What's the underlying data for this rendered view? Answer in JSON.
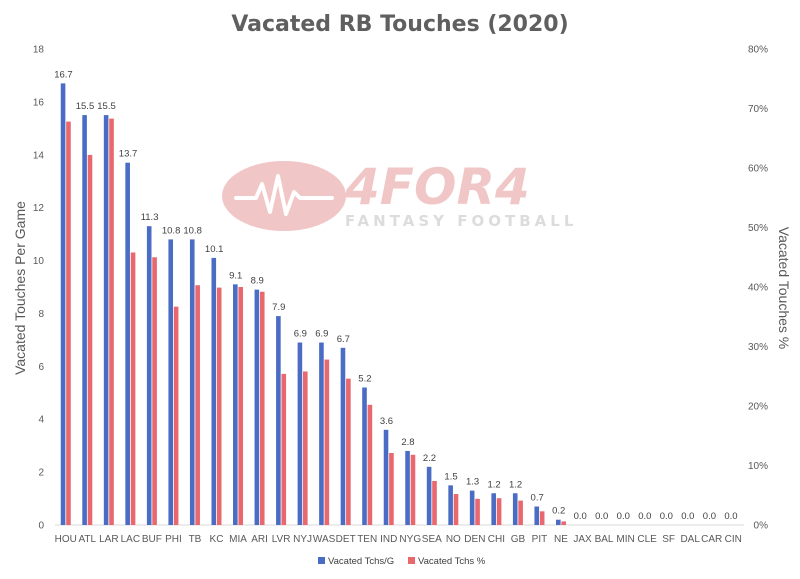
{
  "chart_data": {
    "type": "bar",
    "title": "Vacated RB Touches (2020)",
    "ylabel": "Vacated Touches Per Game",
    "y2label": "Vacated Touches %",
    "ylim": [
      0,
      18
    ],
    "yticks": [
      "0",
      "2",
      "4",
      "6",
      "8",
      "10",
      "12",
      "14",
      "16",
      "18"
    ],
    "y2lim": [
      0,
      80
    ],
    "y2ticks": [
      "0%",
      "10%",
      "20%",
      "30%",
      "40%",
      "50%",
      "60%",
      "70%",
      "80%"
    ],
    "categories": [
      "HOU",
      "ATL",
      "LAR",
      "LAC",
      "BUF",
      "PHI",
      "TB",
      "KC",
      "MIA",
      "ARI",
      "LVR",
      "NYJ",
      "WAS",
      "DET",
      "TEN",
      "IND",
      "NYG",
      "SEA",
      "NO",
      "DEN",
      "CHI",
      "GB",
      "PIT",
      "NE",
      "JAX",
      "BAL",
      "MIN",
      "CLE",
      "SF",
      "DAL",
      "CAR",
      "CIN"
    ],
    "series": [
      {
        "name": "Vacated Tchs/G",
        "color": "#4a6cc4",
        "axis": "left",
        "values": [
          16.7,
          15.5,
          15.5,
          13.7,
          11.3,
          10.8,
          10.8,
          10.1,
          9.1,
          8.9,
          7.9,
          6.9,
          6.9,
          6.7,
          5.2,
          3.6,
          2.8,
          2.2,
          1.5,
          1.3,
          1.2,
          1.2,
          0.7,
          0.2,
          0,
          0,
          0,
          0,
          0,
          0,
          0,
          0
        ],
        "labels": [
          "16.7",
          "15.5",
          "15.5",
          "13.7",
          "11.3",
          "10.8",
          "10.8",
          "10.1",
          "9.1",
          "8.9",
          "7.9",
          "6.9",
          "6.9",
          "6.7",
          "5.2",
          "3.6",
          "2.8",
          "2.2",
          "1.5",
          "1.3",
          "1.2",
          "1.2",
          "0.7",
          "0.2",
          "0.0",
          "0.0",
          "0.0",
          "0.0",
          "0.0",
          "0.0",
          "0.0",
          "0.0"
        ]
      },
      {
        "name": "Vacated Tchs %",
        "color": "#e8686e",
        "axis": "right",
        "values": [
          67.8,
          62.2,
          68.3,
          45.8,
          45.0,
          36.7,
          40.3,
          39.9,
          40.0,
          39.2,
          25.4,
          25.8,
          27.8,
          24.6,
          20.2,
          12.1,
          11.8,
          7.4,
          5.2,
          4.4,
          4.5,
          4.1,
          2.3,
          0.6,
          0,
          0,
          0,
          0,
          0,
          0,
          0,
          0
        ]
      }
    ],
    "legend_position": "bottom",
    "grid": false
  },
  "watermark": {
    "brand": "4FOR4",
    "tagline": "FANTASY FOOTBALL",
    "logo_icon": "football-heartbeat-icon"
  }
}
